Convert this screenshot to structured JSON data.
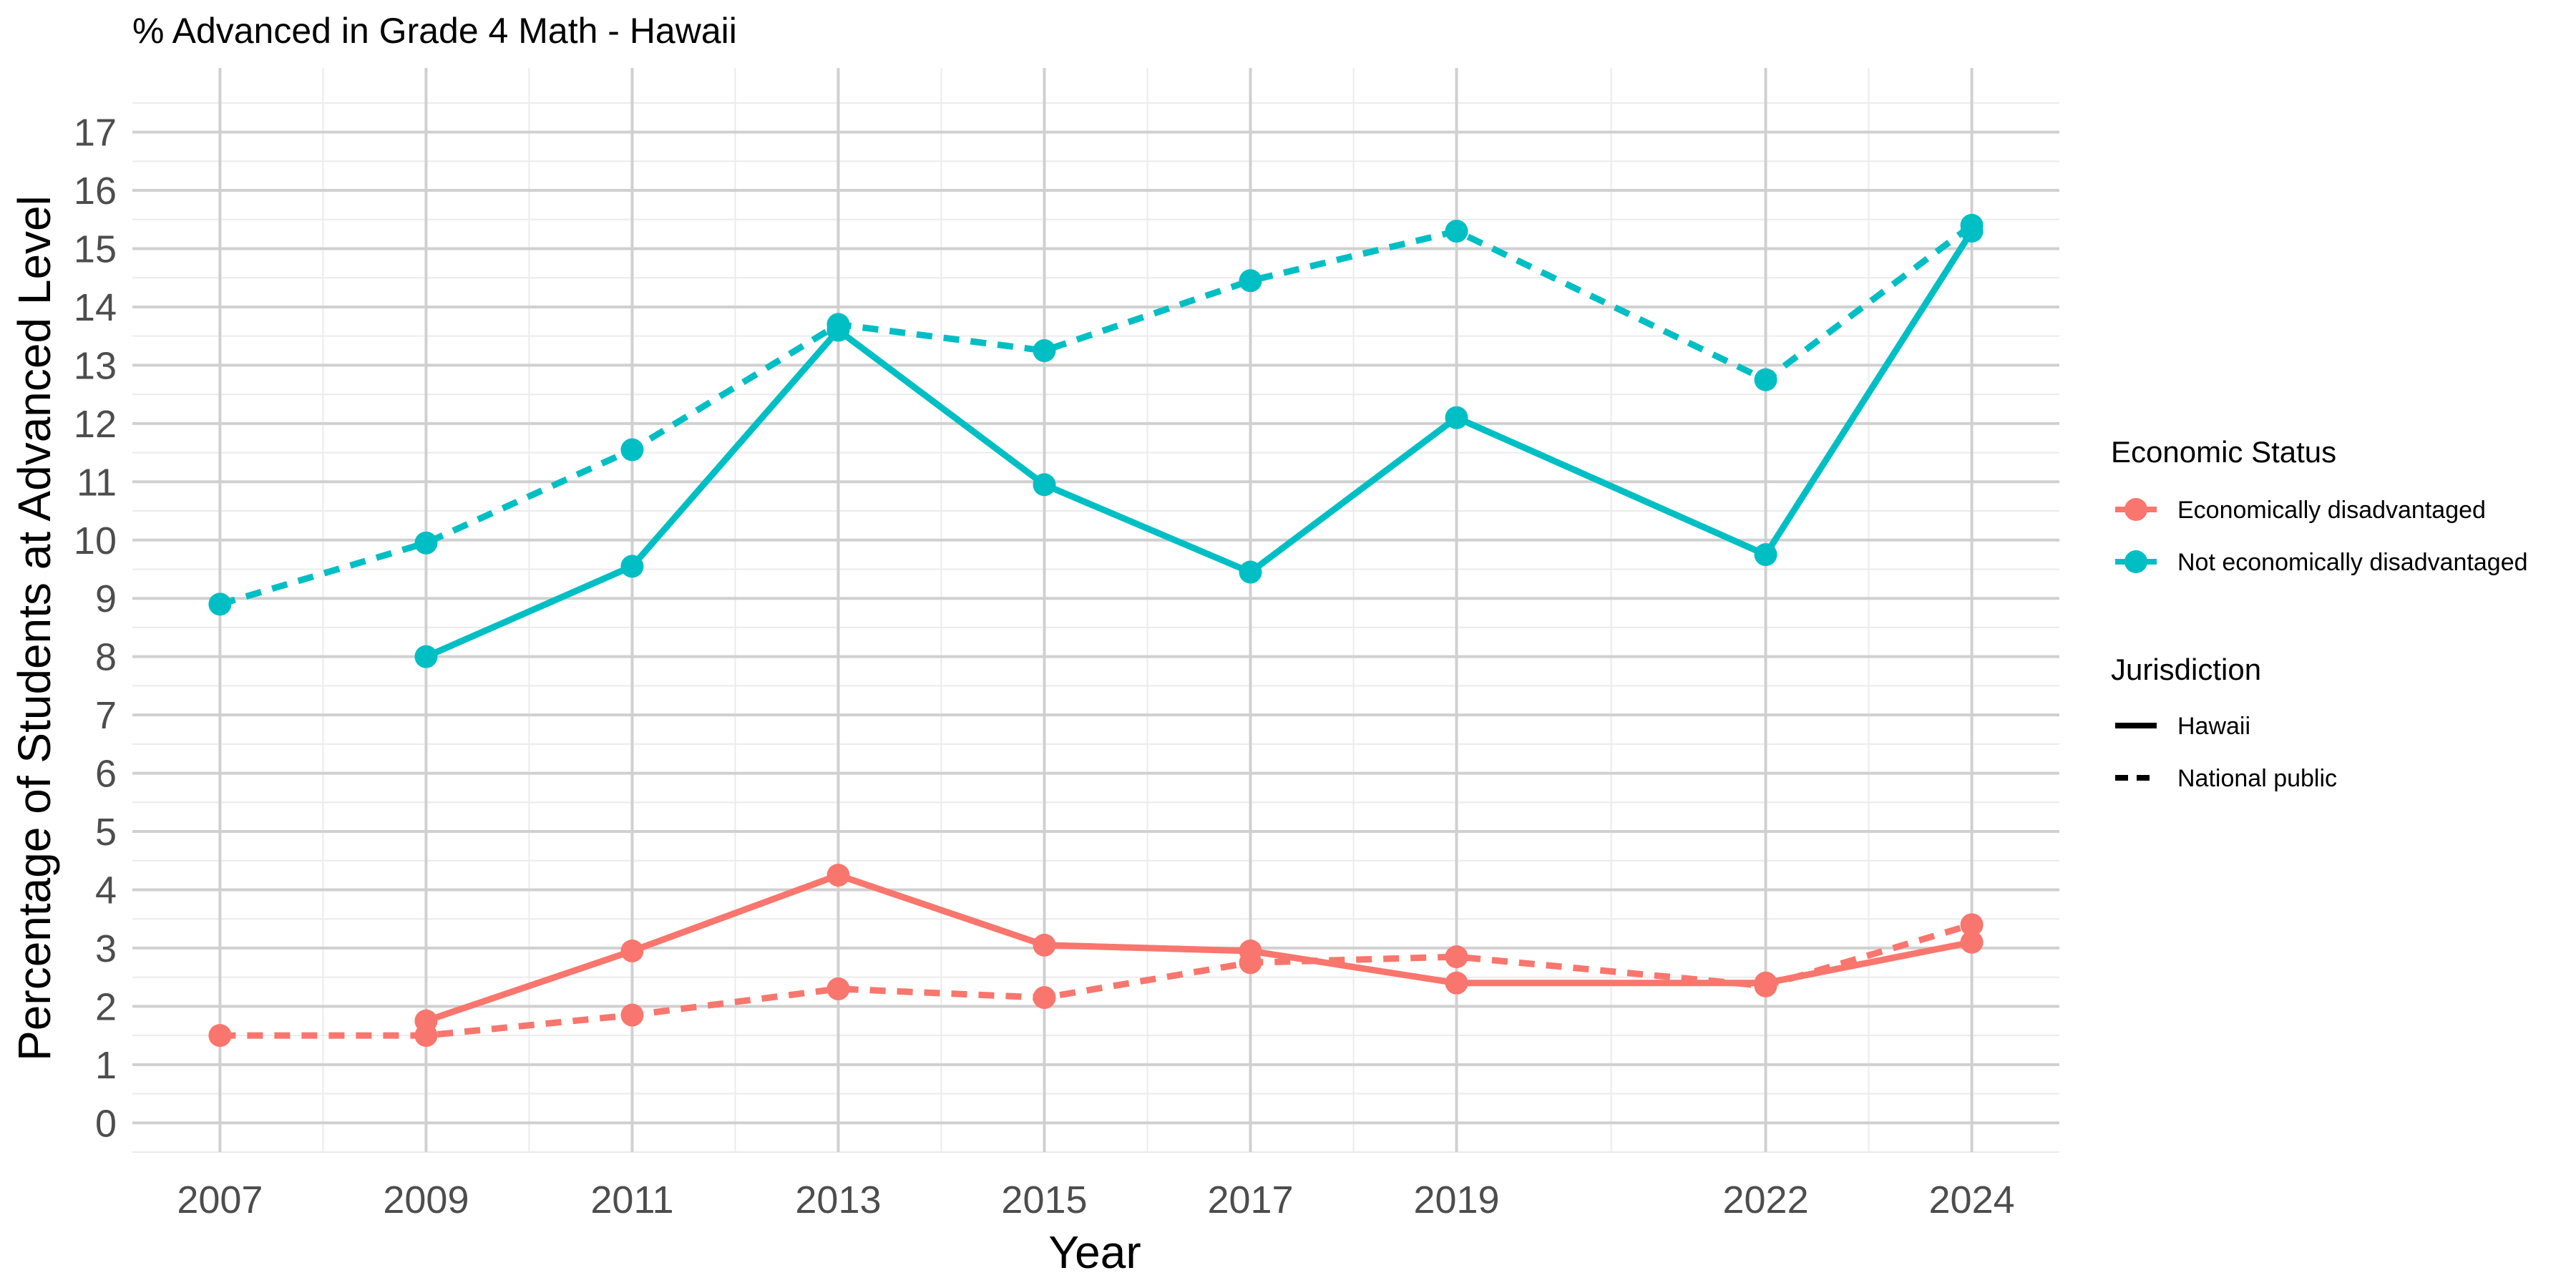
{
  "chart_data": {
    "type": "line",
    "title": "% Advanced in Grade 4 Math - Hawaii",
    "xlabel": "Year",
    "ylabel": "Percentage of Students at Advanced Level",
    "x_ticks": [
      "2007",
      "2009",
      "2011",
      "2013",
      "2015",
      "2017",
      "2019",
      "2022",
      "2024"
    ],
    "y_ticks": [
      "0",
      "1",
      "2",
      "3",
      "4",
      "5",
      "6",
      "7",
      "8",
      "9",
      "10",
      "11",
      "12",
      "13",
      "14",
      "15",
      "16",
      "17"
    ],
    "xlim": [
      2006.15,
      2024.85
    ],
    "ylim": [
      -0.5,
      18.1
    ],
    "grid": true,
    "legend_position": "right",
    "legend": {
      "color_title": "Economic Status",
      "color_entries": [
        {
          "label": "Economically disadvantaged",
          "color": "#F8766D"
        },
        {
          "label": "Not economically disadvantaged",
          "color": "#00BFC4"
        }
      ],
      "linetype_title": "Jurisdiction",
      "linetype_entries": [
        {
          "label": "Hawaii",
          "dash": "solid"
        },
        {
          "label": "National public",
          "dash": "dashed"
        }
      ]
    },
    "series": [
      {
        "status": "Not economically disadvantaged",
        "jurisdiction": "National public",
        "color": "#00BFC4",
        "dash": "dashed",
        "x": [
          2007,
          2009,
          2011,
          2013,
          2015,
          2017,
          2019,
          2022,
          2024
        ],
        "values": [
          8.9,
          9.95,
          11.55,
          13.7,
          13.25,
          14.45,
          15.3,
          12.75,
          15.4
        ]
      },
      {
        "status": "Not economically disadvantaged",
        "jurisdiction": "Hawaii",
        "color": "#00BFC4",
        "dash": "solid",
        "x": [
          2009,
          2011,
          2013,
          2015,
          2017,
          2019,
          2022,
          2024
        ],
        "values": [
          8.0,
          9.55,
          13.6,
          10.95,
          9.45,
          12.1,
          9.75,
          15.3
        ]
      },
      {
        "status": "Economically disadvantaged",
        "jurisdiction": "Hawaii",
        "color": "#F8766D",
        "dash": "solid",
        "x": [
          2009,
          2011,
          2013,
          2015,
          2017,
          2019,
          2022,
          2024
        ],
        "values": [
          1.75,
          2.95,
          4.25,
          3.05,
          2.95,
          2.4,
          2.4,
          3.1
        ]
      },
      {
        "status": "Economically disadvantaged",
        "jurisdiction": "National public",
        "color": "#F8766D",
        "dash": "dashed",
        "x": [
          2007,
          2009,
          2011,
          2013,
          2015,
          2017,
          2019,
          2022,
          2024
        ],
        "values": [
          1.5,
          1.5,
          1.85,
          2.3,
          2.15,
          2.75,
          2.85,
          2.35,
          3.4
        ]
      }
    ]
  }
}
